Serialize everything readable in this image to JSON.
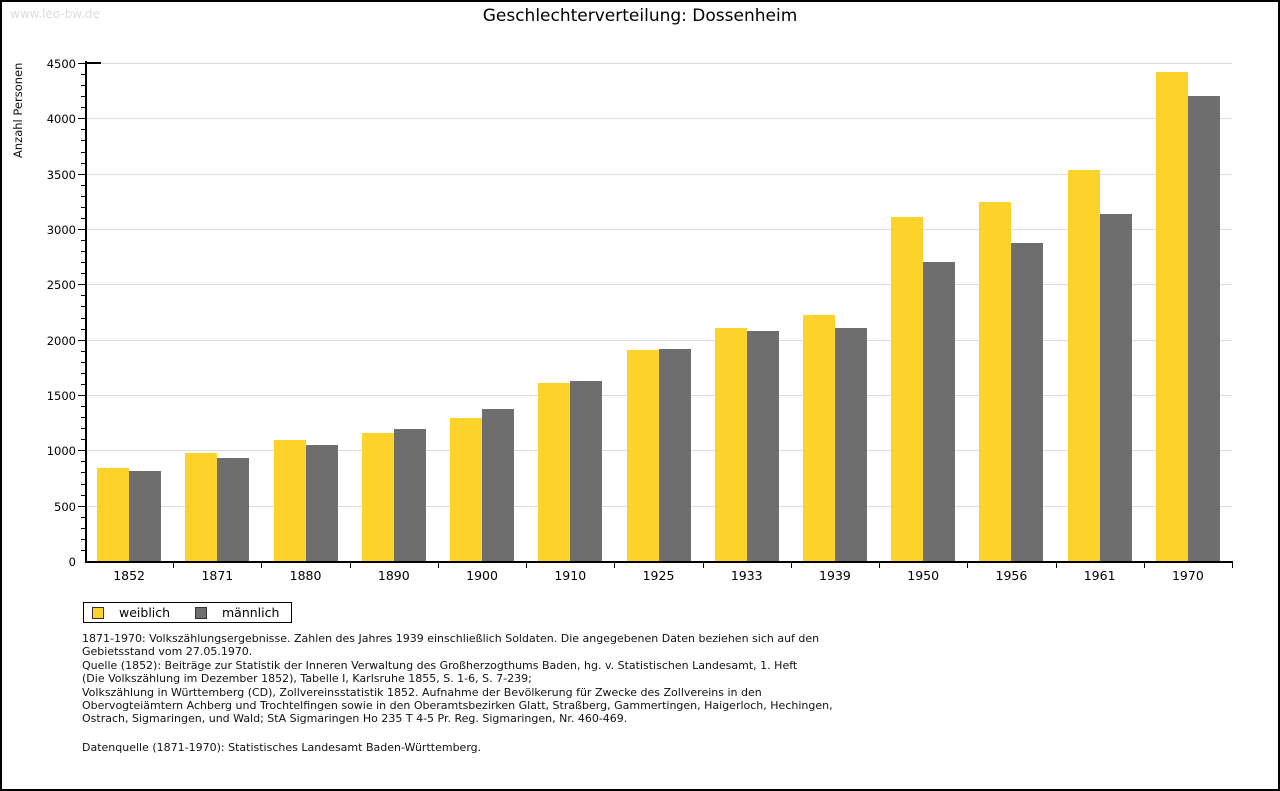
{
  "watermark": "www.leo-bw.de",
  "title": "Geschlechterverteilung: Dossenheim",
  "chart_data": {
    "type": "bar",
    "title": "Geschlechterverteilung: Dossenheim",
    "xlabel": "",
    "ylabel": "Anzahl Personen",
    "ylim": [
      0,
      4500
    ],
    "ytick_step": 500,
    "yminor_step": 100,
    "grid": true,
    "legend_position": "bottom-left",
    "categories": [
      "1852",
      "1871",
      "1880",
      "1890",
      "1900",
      "1910",
      "1925",
      "1933",
      "1939",
      "1950",
      "1956",
      "1961",
      "1970"
    ],
    "series": [
      {
        "name": "weiblich",
        "color": "#FDD32B",
        "values": [
          840,
          975,
          1090,
          1155,
          1295,
          1610,
          1910,
          2105,
          2220,
          3110,
          3240,
          3530,
          4420
        ]
      },
      {
        "name": "männlich",
        "color": "#6E6E6E",
        "values": [
          810,
          930,
          1050,
          1190,
          1370,
          1630,
          1920,
          2080,
          2105,
          2700,
          2870,
          3135,
          4200
        ]
      }
    ]
  },
  "legend": {
    "items": [
      {
        "label": "weiblich",
        "color": "#FDD32B"
      },
      {
        "label": "männlich",
        "color": "#6E6E6E"
      }
    ]
  },
  "footer": {
    "note_lines": [
      "1871-1970: Volkszählungsergebnisse. Zahlen des Jahres 1939 einschließlich Soldaten. Die angegebenen Daten beziehen sich auf den",
      "Gebietsstand vom 27.05.1970.",
      "Quelle (1852): Beiträge zur Statistik der Inneren Verwaltung des Großherzogthums Baden, hg. v. Statistischen Landesamt, 1. Heft",
      "(Die Volkszählung im Dezember 1852), Tabelle I, Karlsruhe 1855, S. 1-6, S. 7-239;",
      "Volkszählung in Württemberg (CD), Zollvereinsstatistik 1852. Aufnahme der Bevölkerung für Zwecke des Zollvereins in den",
      "Obervogteiämtern Achberg und Trochtelfingen sowie in den Oberamtsbezirken Glatt, Straßberg, Gammertingen, Haigerloch, Hechingen,",
      "Ostrach, Sigmaringen, und Wald; StA Sigmaringen Ho 235 T 4-5 Pr. Reg. Sigmaringen, Nr. 460-469."
    ],
    "datasource": "Datenquelle (1871-1970): Statistisches Landesamt Baden-Württemberg."
  }
}
